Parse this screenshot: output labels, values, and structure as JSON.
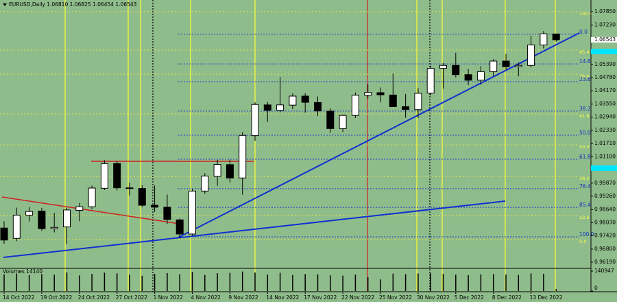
{
  "chart_data": {
    "type": "candlestick",
    "title": "EURUSD,Daily 1.06810 1.06825 1.06454 1.06543",
    "categories": [
      "14 Oct 2022",
      null,
      null,
      "19 Oct 2022",
      null,
      null,
      "24 Oct 2022",
      null,
      null,
      "27 Oct 2022",
      null,
      null,
      "1 Nov 2022",
      null,
      null,
      "4 Nov 2022",
      null,
      null,
      "9 Nov 2022",
      null,
      null,
      "14 Nov 2022",
      null,
      null,
      "17 Nov 2022",
      null,
      null,
      "22 Nov 2022",
      null,
      null,
      "25 Nov 2022",
      null,
      null,
      "30 Nov 2022",
      null,
      null,
      "5 Dec 2022",
      null,
      null,
      "8 Dec 2022",
      null,
      null,
      "13 Dec 2022",
      null,
      null
    ],
    "open": [
      0.9778,
      0.973,
      0.9838,
      0.9857,
      0.9775,
      0.9783,
      0.986,
      0.9877,
      0.9963,
      1.0078,
      0.9965,
      0.9962,
      0.9884,
      0.9875,
      0.9816,
      0.975,
      0.995,
      1.0018,
      1.0073,
      1.0011,
      1.0208,
      1.0351,
      1.0326,
      1.035,
      1.0392,
      1.0362,
      1.0322,
      1.0241,
      1.0302,
      1.0396,
      1.0408,
      1.0397,
      1.0343,
      1.0329,
      1.0406,
      1.0521,
      1.0535,
      1.0492,
      1.0466,
      1.0506,
      1.0555,
      1.0529,
      1.0535,
      1.063,
      1.0681
    ],
    "high": [
      0.9809,
      0.9873,
      0.9876,
      0.9872,
      0.9848,
      0.9873,
      0.9895,
      0.9976,
      1.0094,
      1.0088,
      0.9989,
      0.9977,
      0.9976,
      0.9934,
      0.9822,
      0.996,
      1.0033,
      1.0095,
      1.0096,
      1.0224,
      1.0363,
      1.0365,
      1.0481,
      1.0405,
      1.0405,
      1.039,
      1.0335,
      1.0306,
      1.0409,
      1.0448,
      1.0432,
      1.0497,
      1.0402,
      1.0429,
      1.0534,
      1.0546,
      1.0594,
      1.0518,
      1.0531,
      1.0564,
      1.0589,
      1.0549,
      1.0673,
      1.0695,
      1.06825
    ],
    "low": [
      0.9705,
      0.9717,
      0.9808,
      0.9765,
      0.9758,
      0.9705,
      0.981,
      0.9865,
      0.9955,
      0.9952,
      0.9929,
      0.9875,
      0.9853,
      0.9797,
      0.973,
      0.9744,
      0.9937,
      0.9975,
      0.9989,
      0.9933,
      1.0184,
      1.0272,
      1.0318,
      1.0331,
      1.0315,
      1.03,
      1.0222,
      1.0225,
      1.029,
      1.0381,
      1.0363,
      1.0342,
      1.0291,
      1.029,
      1.0395,
      1.0426,
      1.0479,
      1.0443,
      1.0445,
      1.0485,
      1.0515,
      1.0484,
      1.0525,
      1.0614,
      1.06454
    ],
    "close": [
      0.9722,
      0.9838,
      0.9855,
      0.9775,
      0.9781,
      0.9862,
      0.9877,
      0.9964,
      1.0078,
      0.9965,
      0.9964,
      0.9884,
      0.9875,
      0.9818,
      0.975,
      0.995,
      1.002,
      1.0074,
      1.0011,
      1.0209,
      1.0353,
      1.0326,
      1.0351,
      1.0392,
      1.0363,
      1.0323,
      1.0241,
      1.0302,
      1.0396,
      1.0409,
      1.0398,
      1.0343,
      1.033,
      1.0405,
      1.0521,
      1.0535,
      1.0492,
      1.0466,
      1.0506,
      1.0555,
      1.0529,
      1.0535,
      1.063,
      1.0682,
      1.06543
    ],
    "ylim": [
      0.95934,
      1.08393
    ],
    "yticks": [
      {
        "value": 1.0785,
        "label": "1.07850"
      },
      {
        "value": 1.0723,
        "label": "1.07230"
      },
      {
        "value": 1.0539,
        "label": "1.05390"
      },
      {
        "value": 1.0478,
        "label": "1.04780"
      },
      {
        "value": 1.0417,
        "label": "1.04170"
      },
      {
        "value": 1.0355,
        "label": "1.03550"
      },
      {
        "value": 1.0294,
        "label": "1.02940"
      },
      {
        "value": 1.0233,
        "label": "1.02330"
      },
      {
        "value": 1.0171,
        "label": "1.01710"
      },
      {
        "value": 1.011,
        "label": "1.01100"
      },
      {
        "value": 0.9987,
        "label": "0.99870"
      },
      {
        "value": 0.9926,
        "label": "0.99260"
      },
      {
        "value": 0.9864,
        "label": "0.98640"
      },
      {
        "value": 0.9803,
        "label": "0.98030"
      },
      {
        "value": 0.9742,
        "label": "0.97420"
      },
      {
        "value": 0.968,
        "label": "0.96800"
      },
      {
        "value": 0.9619,
        "label": "0.96190"
      }
    ],
    "price_label": {
      "value": 1.06543,
      "label": "1.06543"
    },
    "fib_blue": [
      {
        "label": "0.0",
        "price": 1.068
      },
      {
        "label": "14.6",
        "price": 1.0542
      },
      {
        "label": "23.6",
        "price": 1.0459
      },
      {
        "label": "38.2",
        "price": 1.0322
      },
      {
        "label": "50.0",
        "price": 1.021
      },
      {
        "label": "61.8",
        "price": 1.0098
      },
      {
        "label": "76.4",
        "price": 0.9961
      },
      {
        "label": "85.4",
        "price": 0.9874
      },
      {
        "label": "100.0",
        "price": 0.9737
      }
    ],
    "fib_yellow": [
      {
        "label": "100.0",
        "price": 1.0785
      },
      {
        "label": "85.4",
        "price": 1.0606
      },
      {
        "label": "76.4",
        "price": 1.0494
      },
      {
        "label": "61.8",
        "price": 1.0309
      },
      {
        "label": "50.0",
        "price": 1.0165
      },
      {
        "label": "38.2",
        "price": 1.0018
      },
      {
        "label": "23.6",
        "price": 0.9836
      },
      {
        "label": "0.0",
        "price": 0.9724
      }
    ],
    "volume": {
      "label": "Volumes 14140",
      "values": [
        118000,
        124000,
        112000,
        120000,
        115000,
        132000,
        110000,
        121000,
        130000,
        125000,
        116000,
        108000,
        122000,
        127000,
        119000,
        135000,
        114000,
        126000,
        128000,
        138000,
        131000,
        117000,
        129000,
        113000,
        120000,
        118000,
        111000,
        109000,
        116000,
        98000,
        82000,
        123000,
        119000,
        124000,
        127000,
        121000,
        115000,
        112000,
        118000,
        120000,
        117000,
        113000,
        125000,
        122000,
        14140
      ],
      "ylim": [
        0,
        140947
      ],
      "yticks": [
        140947,
        0
      ]
    }
  }
}
